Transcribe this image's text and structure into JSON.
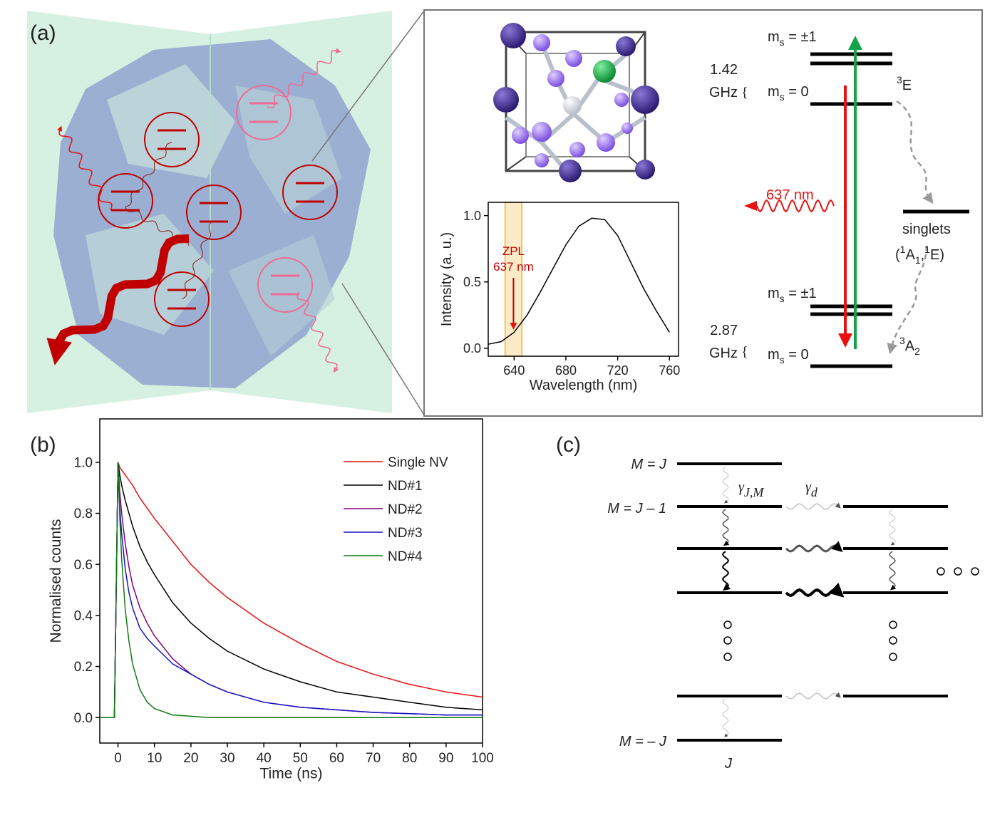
{
  "panel_labels": [
    "(a)",
    "(b)",
    "(c)"
  ],
  "energy_diagram": {
    "ms_symbol": "m",
    "ms_subscript": "s",
    "ms_values": [
      " = ±1",
      " = 0",
      " = ±1",
      " = 0"
    ],
    "splittings": [
      {
        "value": "1.42",
        "unit": "GHz"
      },
      {
        "value": "2.87",
        "unit": "GHz"
      }
    ],
    "excited_state": {
      "superscript": "3",
      "symbol": "E"
    },
    "ground_state": {
      "superscript": "3",
      "symbol": "A",
      "subscript": "2"
    },
    "singlets": "singlets",
    "singlet_terms": {
      "open": "(",
      "sup1": "1",
      "sym1": "A",
      "sub1": "1",
      "sep": ",",
      "sup2": "1",
      "sym2": "E",
      "close": ")"
    },
    "emission": "637 nm"
  },
  "diagram_c": {
    "level_labels": [
      "M = J",
      "M = J – 1",
      "M = – J"
    ],
    "column_label": "J",
    "gamma_JM": {
      "symbol": "γ",
      "subscript": "J,M"
    },
    "gamma_d": {
      "symbol": "γ",
      "subscript": "d"
    }
  },
  "chart_data": [
    {
      "type": "line",
      "xlabel": "Time (ns)",
      "ylabel": "Normalised counts",
      "x": [
        -5,
        -1,
        0,
        0.5,
        1,
        2,
        3,
        4,
        6,
        8,
        10,
        15,
        20,
        25,
        30,
        40,
        50,
        60,
        70,
        80,
        90,
        100
      ],
      "series": [
        {
          "name": "Single NV",
          "color": "#e8110f",
          "values": [
            0,
            0,
            1.0,
            0.98,
            0.97,
            0.95,
            0.93,
            0.91,
            0.86,
            0.82,
            0.78,
            0.69,
            0.6,
            0.53,
            0.47,
            0.37,
            0.29,
            0.22,
            0.17,
            0.13,
            0.1,
            0.08
          ]
        },
        {
          "name": "ND#1",
          "color": "#000000",
          "values": [
            0,
            0,
            1.0,
            0.95,
            0.91,
            0.85,
            0.8,
            0.75,
            0.67,
            0.61,
            0.56,
            0.45,
            0.37,
            0.31,
            0.26,
            0.19,
            0.14,
            0.1,
            0.08,
            0.06,
            0.04,
            0.03
          ]
        },
        {
          "name": "ND#2",
          "color": "#800080",
          "values": [
            0,
            0,
            1.0,
            0.88,
            0.8,
            0.68,
            0.59,
            0.52,
            0.43,
            0.37,
            0.32,
            0.23,
            0.17,
            0.13,
            0.1,
            0.06,
            0.04,
            0.03,
            0.02,
            0.015,
            0.01,
            0.01
          ]
        },
        {
          "name": "ND#3",
          "color": "#1515c8",
          "values": [
            0,
            0,
            1.0,
            0.82,
            0.72,
            0.58,
            0.49,
            0.43,
            0.35,
            0.31,
            0.28,
            0.21,
            0.17,
            0.13,
            0.1,
            0.06,
            0.04,
            0.03,
            0.02,
            0.015,
            0.01,
            0.01
          ]
        },
        {
          "name": "ND#4",
          "color": "#127a12",
          "values": [
            0,
            0,
            1.0,
            0.78,
            0.62,
            0.42,
            0.3,
            0.21,
            0.11,
            0.06,
            0.035,
            0.01,
            0.005,
            0,
            0,
            0,
            0,
            0,
            0,
            0,
            0,
            0
          ]
        }
      ],
      "xlim": [
        -5,
        100
      ],
      "ylim": [
        -0.1,
        1.17
      ],
      "xticks": [
        0,
        10,
        20,
        30,
        40,
        50,
        60,
        70,
        80,
        90,
        100
      ],
      "yticks": [
        {
          "value": 0,
          "label": "0.0"
        },
        {
          "value": 0.2,
          "label": "0.2"
        },
        {
          "value": 0.4,
          "label": "0.4"
        },
        {
          "value": 0.6,
          "label": "0.6"
        },
        {
          "value": 0.8,
          "label": "0.8"
        },
        {
          "value": 1,
          "label": "1.0"
        }
      ],
      "legend": "upper right"
    },
    {
      "type": "line",
      "xlabel": "Wavelength (nm)",
      "ylabel": "Intensity (a. u.)",
      "x": [
        620,
        630,
        640,
        650,
        660,
        670,
        680,
        690,
        700,
        710,
        720,
        730,
        740,
        750,
        760
      ],
      "series": [
        {
          "color": "#000000",
          "values": [
            0.03,
            0.05,
            0.12,
            0.25,
            0.42,
            0.6,
            0.78,
            0.92,
            0.98,
            0.97,
            0.85,
            0.65,
            0.45,
            0.28,
            0.12
          ]
        }
      ],
      "xlim": [
        620,
        767
      ],
      "ylim": [
        -0.06,
        1.1
      ],
      "xticks": [
        640,
        680,
        720,
        760
      ],
      "yticks": [
        {
          "value": 0,
          "label": "0.0"
        },
        0.5,
        {
          "value": 1,
          "label": "1.0"
        }
      ],
      "zpl_band": [
        633,
        646
      ],
      "annotation": [
        "ZPL",
        "637 nm"
      ]
    }
  ]
}
